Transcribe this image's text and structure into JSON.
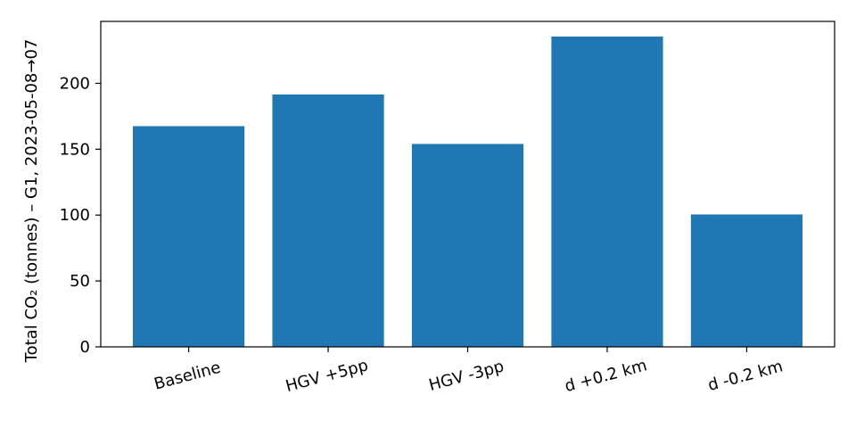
{
  "chart_data": {
    "type": "bar",
    "title": "",
    "xlabel": "",
    "ylabel": "Total CO₂ (tonnes) – G1, 2023-05-08→07",
    "categories": [
      "Baseline",
      "HGV +5pp",
      "HGV -3pp",
      "d +0.2 km",
      "d -0.2 km"
    ],
    "values": [
      167.5,
      191.5,
      154,
      235.5,
      100.5
    ],
    "ylim": [
      0,
      247
    ],
    "yticks": [
      0,
      50,
      100,
      150,
      200
    ],
    "bar_color": "#1f77b4",
    "grid": false,
    "legend": "none"
  }
}
